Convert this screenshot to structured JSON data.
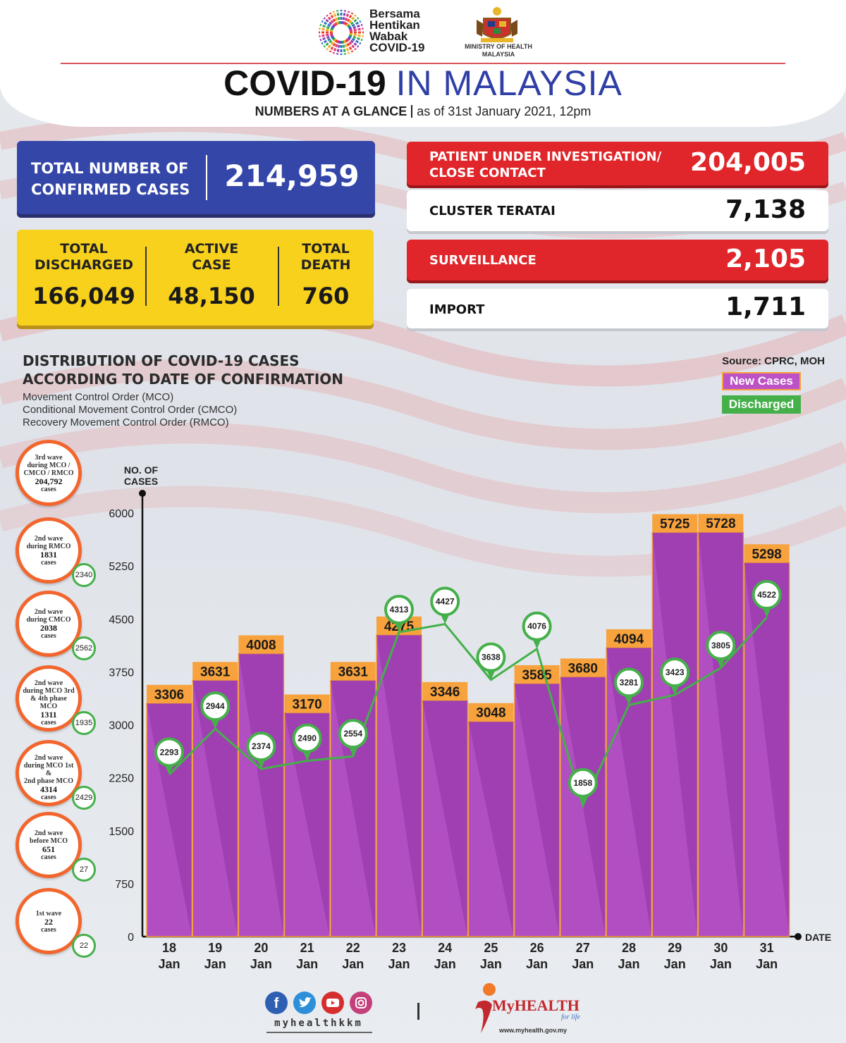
{
  "header": {
    "logo_text": [
      "Bersama",
      "Hentikan",
      "Wabak",
      "COVID-19"
    ],
    "ministry": [
      "MINISTRY OF HEALTH",
      "MALAYSIA"
    ],
    "title_bold": "COVID-19",
    "title_blue": "IN MALAYSIA",
    "subtitle_bold": "NUMBERS AT A GLANCE",
    "subtitle_rest": "as of 31st January 2021, 12pm"
  },
  "stats": {
    "confirmed": {
      "label": "TOTAL NUMBER OF CONFIRMED CASES",
      "label_lines": [
        "TOTAL NUMBER OF",
        "CONFIRMED CASES"
      ],
      "value": "214,959"
    },
    "discharged": {
      "label_lines": [
        "TOTAL",
        "DISCHARGED"
      ],
      "value": "166,049"
    },
    "active": {
      "label_lines": [
        "ACTIVE",
        "CASE"
      ],
      "value": "48,150"
    },
    "death": {
      "label_lines": [
        "TOTAL",
        "DEATH"
      ],
      "value": "760"
    },
    "pui": {
      "label_lines": [
        "PATIENT UNDER INVESTIGATION/",
        "CLOSE CONTACT"
      ],
      "value": "204,005"
    },
    "cluster": {
      "label": "CLUSTER TERATAI",
      "value": "7,138"
    },
    "surveillance": {
      "label": "SURVEILLANCE",
      "value": "2,105"
    },
    "import": {
      "label": "IMPORT",
      "value": "1,711"
    }
  },
  "chart_heading": {
    "title_lines": [
      "DISTRIBUTION OF COVID-19 CASES",
      "ACCORDING TO DATE OF CONFIRMATION"
    ],
    "notes": [
      "Movement Control Order (MCO)",
      "Conditional Movement Control Order (CMCO)",
      "Recovery Movement Control Order (RMCO)"
    ],
    "source": "Source: CPRC, MOH",
    "legend_new": "New Cases",
    "legend_discharged": "Discharged"
  },
  "waves": [
    {
      "lines": [
        "3rd wave",
        "during MCO /",
        "CMCO / RMCO"
      ],
      "count": "204,792",
      "unit": "cases",
      "badge": ""
    },
    {
      "lines": [
        "2nd wave",
        "during RMCO"
      ],
      "count": "1831",
      "unit": "cases",
      "badge": "2340"
    },
    {
      "lines": [
        "2nd wave",
        "during CMCO"
      ],
      "count": "2038",
      "unit": "cases",
      "badge": "2562"
    },
    {
      "lines": [
        "2nd wave",
        "during MCO 3rd",
        "& 4th phase MCO"
      ],
      "count": "1311",
      "unit": "cases",
      "badge": "1935"
    },
    {
      "lines": [
        "2nd wave",
        "during MCO 1st &",
        "2nd phase MCO"
      ],
      "count": "4314",
      "unit": "cases",
      "badge": "2429"
    },
    {
      "lines": [
        "2nd wave",
        "before MCO"
      ],
      "count": "651",
      "unit": "cases",
      "badge": "27"
    },
    {
      "lines": [
        "1st wave"
      ],
      "count": "22",
      "unit": "cases",
      "badge": "22"
    }
  ],
  "chart_data": {
    "type": "bar",
    "ylabel": "NO. OF CASES",
    "xlabel": "DATE",
    "ylim": [
      0,
      6000
    ],
    "yticks": [
      0,
      750,
      1500,
      2250,
      3000,
      3750,
      4500,
      5250,
      6000
    ],
    "categories": [
      [
        "18",
        "Jan"
      ],
      [
        "19",
        "Jan"
      ],
      [
        "20",
        "Jan"
      ],
      [
        "21",
        "Jan"
      ],
      [
        "22",
        "Jan"
      ],
      [
        "23",
        "Jan"
      ],
      [
        "24",
        "Jan"
      ],
      [
        "25",
        "Jan"
      ],
      [
        "26",
        "Jan"
      ],
      [
        "27",
        "Jan"
      ],
      [
        "28",
        "Jan"
      ],
      [
        "29",
        "Jan"
      ],
      [
        "30",
        "Jan"
      ],
      [
        "31",
        "Jan"
      ]
    ],
    "series": [
      {
        "name": "New Cases",
        "kind": "bar",
        "values": [
          3306,
          3631,
          4008,
          3170,
          3631,
          4275,
          3346,
          3048,
          3585,
          3680,
          4094,
          5725,
          5728,
          5298
        ]
      },
      {
        "name": "Discharged",
        "kind": "line",
        "values": [
          2293,
          2944,
          2374,
          2490,
          2554,
          4313,
          4427,
          3638,
          4076,
          1858,
          3281,
          3423,
          3805,
          4522
        ]
      }
    ],
    "legend": "top-right",
    "grid": false
  },
  "footer": {
    "handle": "myhealthkkm",
    "brand": "MyHEALTH",
    "tagline": "for life",
    "url": "www.myhealth.gov.my"
  },
  "colors": {
    "bar": "#b04ec2",
    "bar_label_bg": "#f7a23c",
    "line": "#45b04a",
    "blue_box": "#3446a8",
    "yellow_box": "#f7d11c",
    "red_box": "#e0262a"
  }
}
